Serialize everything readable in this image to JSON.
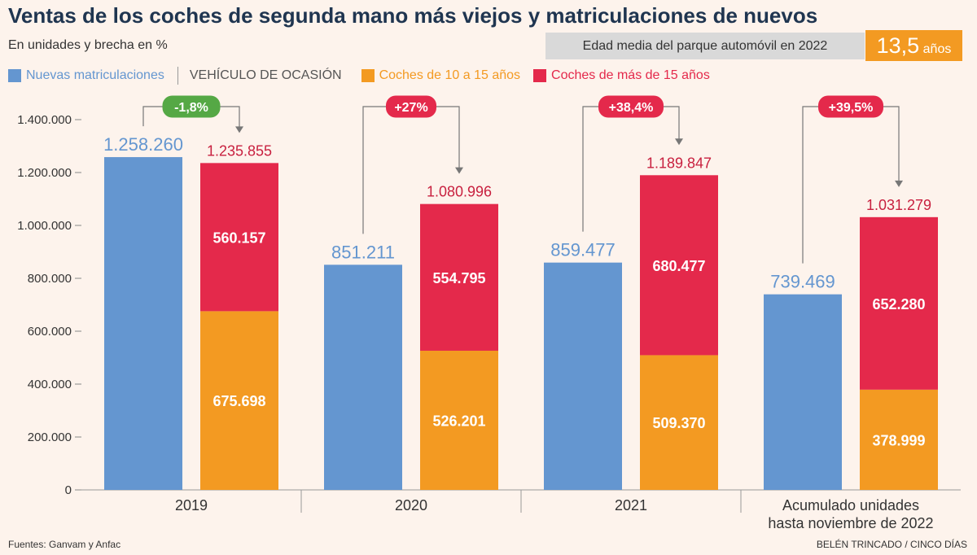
{
  "header": {
    "title": "Ventas de los coches de segunda mano más viejos y matriculaciones de nuevos",
    "subtitle": "En unidades y brecha en %",
    "age_label": "Edad media del parque automóvil en 2022",
    "age_value": "13,5",
    "age_unit": "años"
  },
  "legend": {
    "new": "Nuevas matriculaciones",
    "group": "VEHÍCULO DE OCASIÓN",
    "mid": "Coches de 10 a 15 años",
    "old": "Coches de más de 15 años"
  },
  "colors": {
    "new": "#6496d0",
    "mid": "#f39a22",
    "old": "#e4294b",
    "gap_negative": "#55a845",
    "gap_positive": "#e4294b",
    "label_new": "#6496d0",
    "label_old": "#c8203f"
  },
  "footer": {
    "source": "Fuentes: Ganvam y Anfac",
    "credit": "BELÉN TRINCADO / CINCO DÍAS"
  },
  "chart_data": {
    "type": "bar",
    "ylim": [
      0,
      1400000
    ],
    "yticks": [
      0,
      200000,
      400000,
      600000,
      800000,
      1000000,
      1200000,
      1400000
    ],
    "ytick_labels": [
      "0",
      "200.000",
      "400.000",
      "600.000",
      "800.000",
      "1.000.000",
      "1.200.000",
      "1.400.000"
    ],
    "categories": [
      {
        "lines": [
          "2019"
        ],
        "new": 1258260,
        "new_label": "1.258.260",
        "mid": 675698,
        "mid_label": "675.698",
        "old": 560157,
        "old_label": "560.157",
        "total": 1235855,
        "total_label": "1.235.855",
        "gap": "-1,8%",
        "gap_sign": "negative"
      },
      {
        "lines": [
          "2020"
        ],
        "new": 851211,
        "new_label": "851.211",
        "mid": 526201,
        "mid_label": "526.201",
        "old": 554795,
        "old_label": "554.795",
        "total": 1080996,
        "total_label": "1.080.996",
        "gap": "+27%",
        "gap_sign": "positive"
      },
      {
        "lines": [
          "2021"
        ],
        "new": 859477,
        "new_label": "859.477",
        "mid": 509370,
        "mid_label": "509.370",
        "old": 680477,
        "old_label": "680.477",
        "total": 1189847,
        "total_label": "1.189.847",
        "gap": "+38,4%",
        "gap_sign": "positive"
      },
      {
        "lines": [
          "Acumulado unidades",
          "hasta noviembre de 2022"
        ],
        "new": 739469,
        "new_label": "739.469",
        "mid": 378999,
        "mid_label": "378.999",
        "old": 652280,
        "old_label": "652.280",
        "total": 1031279,
        "total_label": "1.031.279",
        "gap": "+39,5%",
        "gap_sign": "positive"
      }
    ]
  }
}
